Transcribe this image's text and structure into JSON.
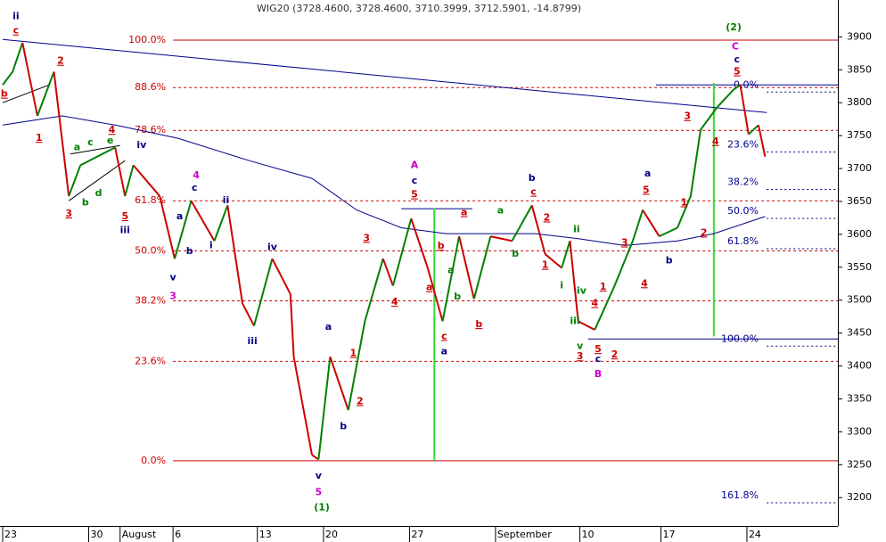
{
  "chart_data": {
    "type": "line",
    "title": "WIG20 (3728.4600, 3728.4600, 3710.3999, 3712.5901, -14.8799)",
    "xlim": [
      0,
      50.5
    ],
    "ylim": [
      3157,
      3956
    ],
    "xticks": [
      {
        "value": 0,
        "label": "23"
      },
      {
        "value": 5.2,
        "label": "30"
      },
      {
        "value": 7.1,
        "label": "August"
      },
      {
        "value": 10.3,
        "label": "6"
      },
      {
        "value": 15.4,
        "label": "13"
      },
      {
        "value": 19.4,
        "label": "20"
      },
      {
        "value": 24.6,
        "label": "27"
      },
      {
        "value": 29.8,
        "label": "September"
      },
      {
        "value": 34.9,
        "label": "10"
      },
      {
        "value": 39.8,
        "label": "17"
      },
      {
        "value": 45,
        "label": "24"
      }
    ],
    "yticks": [
      3200,
      3250,
      3300,
      3350,
      3400,
      3450,
      3500,
      3550,
      3600,
      3650,
      3700,
      3750,
      3800,
      3850,
      3900
    ],
    "up_color": "#008000",
    "down_color": "#cc0000",
    "x": [
      0,
      0.6,
      1.2,
      2.1,
      3.1,
      4.0,
      4.7,
      6.8,
      7.4,
      7.9,
      9.5,
      10.4,
      11.4,
      12.8,
      13.6,
      14.5,
      15.2,
      16.3,
      17.4,
      17.6,
      18.7,
      19.1,
      19.8,
      20.9,
      21.9,
      23.0,
      23.6,
      24.7,
      25.7,
      26.6,
      27.6,
      28.5,
      29.5,
      30.8,
      32.0,
      32.8,
      33.8,
      34.3,
      34.8,
      35.8,
      37.0,
      38.1,
      38.7,
      39.7,
      40.8,
      41.6,
      42.2,
      43.2,
      44.2,
      44.6,
      45.1,
      45.7,
      46.1
    ],
    "values": [
      3827,
      3847,
      3891,
      3780,
      3847,
      3658,
      3705,
      3732,
      3658,
      3705,
      3658,
      3563,
      3651,
      3590,
      3644,
      3495,
      3461,
      3563,
      3509,
      3414,
      3265,
      3258,
      3414,
      3333,
      3468,
      3563,
      3522,
      3624,
      3549,
      3468,
      3597,
      3502,
      3597,
      3590,
      3644,
      3570,
      3549,
      3590,
      3468,
      3455,
      3522,
      3590,
      3637,
      3597,
      3610,
      3658,
      3759,
      3793,
      3820,
      3827,
      3752,
      3766,
      3718
    ],
    "moving_average": {
      "color": "#00008b",
      "x": [
        0,
        3.6,
        6.8,
        10.6,
        14.9,
        18.7,
        21.4,
        24.1,
        26.8,
        29.5,
        32.2,
        34.9,
        37.6,
        40.8,
        43.0,
        46.1
      ],
      "values": [
        3766,
        3780,
        3766,
        3746,
        3712,
        3685,
        3637,
        3610,
        3601,
        3601,
        3601,
        3593,
        3583,
        3590,
        3601,
        3627
      ]
    },
    "trendlines": [
      {
        "color": "#00008b",
        "x": [
          0,
          46.2
        ],
        "values": [
          3896,
          3785
        ]
      },
      {
        "color": "#000000",
        "x": [
          0,
          2.8
        ],
        "values": [
          3800,
          3827
        ]
      },
      {
        "color": "#000000",
        "x": [
          4.0,
          7.4
        ],
        "values": [
          3651,
          3712
        ]
      },
      {
        "color": "#000000",
        "x": [
          4.1,
          7.1
        ],
        "values": [
          3722,
          3735
        ]
      }
    ],
    "vertical_lines": [
      {
        "color": "#33dd33",
        "x": 26.1,
        "values": [
          3640,
          3256
        ]
      },
      {
        "color": "#33dd33",
        "x": 43.0,
        "values": [
          3830,
          3445
        ]
      }
    ],
    "horizontal_lines": [
      {
        "color": "#00008b",
        "x": [
          24.1,
          28.4
        ],
        "value": 3639
      },
      {
        "color": "#00008b",
        "x": [
          39.5,
          50.5
        ],
        "value": 3827
      },
      {
        "color": "#00008b",
        "x": [
          35.4,
          50.5
        ],
        "value": 3441
      }
    ],
    "fib_levels": {
      "color": "#cc0000",
      "x_start": 10.3,
      "levels": [
        {
          "label": "100.0%",
          "value": 3895,
          "dashed": false
        },
        {
          "label": "88.6%",
          "value": 3823,
          "dashed": true
        },
        {
          "label": "78.6%",
          "value": 3758,
          "dashed": true
        },
        {
          "label": "61.8%",
          "value": 3651,
          "dashed": true
        },
        {
          "label": "50.0%",
          "value": 3575,
          "dashed": true
        },
        {
          "label": "38.2%",
          "value": 3499,
          "dashed": true
        },
        {
          "label": "23.6%",
          "value": 3407,
          "dashed": true
        },
        {
          "label": "0.0%",
          "value": 3256,
          "dashed": false
        }
      ]
    },
    "fib_levels_right": {
      "color": "#00008b",
      "x_label": 45.7,
      "x_start": 46.2,
      "levels": [
        {
          "label": "0.0%",
          "value": 3827
        },
        {
          "label": "23.6%",
          "value": 3736
        },
        {
          "label": "38.2%",
          "value": 3679
        },
        {
          "label": "50.0%",
          "value": 3635
        },
        {
          "label": "61.8%",
          "value": 3589
        },
        {
          "label": "100.0%",
          "value": 3441
        },
        {
          "label": "161.8%",
          "value": 3203
        }
      ]
    },
    "annotations": [
      {
        "text": "ii",
        "x": 0.8,
        "y": 3931,
        "color": "#000080"
      },
      {
        "text": "c",
        "x": 0.8,
        "y": 3909,
        "color": "#cc0000"
      },
      {
        "text": "b",
        "x": 0.1,
        "y": 3813,
        "color": "#cc0000"
      },
      {
        "text": "1",
        "x": 2.2,
        "y": 3746,
        "color": "#cc0000"
      },
      {
        "text": "2",
        "x": 3.5,
        "y": 3863,
        "color": "#cc0000"
      },
      {
        "text": "3",
        "x": 4.0,
        "y": 3631,
        "color": "#cc0000"
      },
      {
        "text": "a",
        "x": 4.5,
        "y": 3732,
        "color": "#008000"
      },
      {
        "text": "b",
        "x": 5.0,
        "y": 3648,
        "color": "#008000"
      },
      {
        "text": "c",
        "x": 5.3,
        "y": 3739,
        "color": "#008000"
      },
      {
        "text": "d",
        "x": 5.8,
        "y": 3662,
        "color": "#008000"
      },
      {
        "text": "e",
        "x": 6.5,
        "y": 3742,
        "color": "#008000"
      },
      {
        "text": "4",
        "x": 6.6,
        "y": 3758,
        "color": "#cc0000"
      },
      {
        "text": "iv",
        "x": 8.4,
        "y": 3735,
        "color": "#000080"
      },
      {
        "text": "5",
        "x": 7.4,
        "y": 3627,
        "color": "#cc0000"
      },
      {
        "text": "iii",
        "x": 7.4,
        "y": 3606,
        "color": "#000080"
      },
      {
        "text": "4",
        "x": 11.7,
        "y": 3689,
        "color": "#cc00cc"
      },
      {
        "text": "c",
        "x": 11.6,
        "y": 3670,
        "color": "#000080"
      },
      {
        "text": "a",
        "x": 10.7,
        "y": 3627,
        "color": "#000080"
      },
      {
        "text": "b",
        "x": 11.3,
        "y": 3574,
        "color": "#000080"
      },
      {
        "text": "i",
        "x": 12.6,
        "y": 3583,
        "color": "#000080"
      },
      {
        "text": "ii",
        "x": 13.5,
        "y": 3651,
        "color": "#000080"
      },
      {
        "text": "v",
        "x": 10.3,
        "y": 3534,
        "color": "#000080"
      },
      {
        "text": "3",
        "x": 10.3,
        "y": 3506,
        "color": "#cc00cc"
      },
      {
        "text": "iv",
        "x": 16.3,
        "y": 3580,
        "color": "#000080"
      },
      {
        "text": "iii",
        "x": 15.1,
        "y": 3437,
        "color": "#000080"
      },
      {
        "text": "a",
        "x": 19.7,
        "y": 3459,
        "color": "#000080"
      },
      {
        "text": "b",
        "x": 20.6,
        "y": 3308,
        "color": "#000080"
      },
      {
        "text": "1",
        "x": 21.2,
        "y": 3419,
        "color": "#cc0000"
      },
      {
        "text": "2",
        "x": 21.6,
        "y": 3346,
        "color": "#cc0000"
      },
      {
        "text": "3",
        "x": 22.0,
        "y": 3594,
        "color": "#cc0000"
      },
      {
        "text": "4",
        "x": 23.7,
        "y": 3497,
        "color": "#cc0000"
      },
      {
        "text": "v",
        "x": 19.1,
        "y": 3233,
        "color": "#000080"
      },
      {
        "text": "5",
        "x": 19.1,
        "y": 3208,
        "color": "#cc00cc"
      },
      {
        "text": "(1)",
        "x": 19.3,
        "y": 3185,
        "color": "#008000"
      },
      {
        "text": "A",
        "x": 24.9,
        "y": 3705,
        "color": "#cc00cc"
      },
      {
        "text": "c",
        "x": 24.9,
        "y": 3681,
        "color": "#000080"
      },
      {
        "text": "5",
        "x": 24.9,
        "y": 3660,
        "color": "#cc0000"
      },
      {
        "text": "b",
        "x": 26.5,
        "y": 3582,
        "color": "#cc0000"
      },
      {
        "text": "a",
        "x": 25.8,
        "y": 3519,
        "color": "#cc0000"
      },
      {
        "text": "a",
        "x": 27.1,
        "y": 3545,
        "color": "#008000"
      },
      {
        "text": "b",
        "x": 27.5,
        "y": 3505,
        "color": "#008000"
      },
      {
        "text": "a",
        "x": 27.9,
        "y": 3633,
        "color": "#cc0000"
      },
      {
        "text": "b",
        "x": 28.8,
        "y": 3463,
        "color": "#cc0000"
      },
      {
        "text": "c",
        "x": 26.7,
        "y": 3445,
        "color": "#cc0000"
      },
      {
        "text": "a",
        "x": 26.7,
        "y": 3422,
        "color": "#000080"
      },
      {
        "text": "a",
        "x": 30.1,
        "y": 3636,
        "color": "#008000"
      },
      {
        "text": "b",
        "x": 31.0,
        "y": 3570,
        "color": "#008000"
      },
      {
        "text": "b",
        "x": 32.0,
        "y": 3685,
        "color": "#000080"
      },
      {
        "text": "c",
        "x": 32.1,
        "y": 3664,
        "color": "#cc0000"
      },
      {
        "text": "2",
        "x": 32.9,
        "y": 3625,
        "color": "#cc0000"
      },
      {
        "text": "1",
        "x": 32.8,
        "y": 3553,
        "color": "#cc0000"
      },
      {
        "text": "i",
        "x": 33.8,
        "y": 3522,
        "color": "#008000"
      },
      {
        "text": "ii",
        "x": 34.7,
        "y": 3607,
        "color": "#008000"
      },
      {
        "text": "iv",
        "x": 35.0,
        "y": 3514,
        "color": "#008000"
      },
      {
        "text": "iii",
        "x": 34.6,
        "y": 3468,
        "color": "#008000"
      },
      {
        "text": "v",
        "x": 34.9,
        "y": 3430,
        "color": "#008000"
      },
      {
        "text": "3",
        "x": 34.9,
        "y": 3414,
        "color": "#cc0000"
      },
      {
        "text": "5",
        "x": 36.0,
        "y": 3425,
        "color": "#cc0000"
      },
      {
        "text": "c",
        "x": 36.0,
        "y": 3410,
        "color": "#000080"
      },
      {
        "text": "B",
        "x": 36.0,
        "y": 3387,
        "color": "#cc00cc"
      },
      {
        "text": "4",
        "x": 35.8,
        "y": 3495,
        "color": "#cc0000"
      },
      {
        "text": "1",
        "x": 36.3,
        "y": 3520,
        "color": "#cc0000"
      },
      {
        "text": "2",
        "x": 37.0,
        "y": 3417,
        "color": "#cc0000"
      },
      {
        "text": "3",
        "x": 37.6,
        "y": 3587,
        "color": "#cc0000"
      },
      {
        "text": "4",
        "x": 38.8,
        "y": 3525,
        "color": "#cc0000"
      },
      {
        "text": "5",
        "x": 38.9,
        "y": 3667,
        "color": "#cc0000"
      },
      {
        "text": "a",
        "x": 39.0,
        "y": 3692,
        "color": "#000080"
      },
      {
        "text": "b",
        "x": 40.3,
        "y": 3560,
        "color": "#000080"
      },
      {
        "text": "1",
        "x": 41.2,
        "y": 3648,
        "color": "#cc0000"
      },
      {
        "text": "2",
        "x": 42.4,
        "y": 3602,
        "color": "#cc0000"
      },
      {
        "text": "3",
        "x": 41.4,
        "y": 3779,
        "color": "#cc0000"
      },
      {
        "text": "4",
        "x": 43.1,
        "y": 3741,
        "color": "#cc0000"
      },
      {
        "text": "(2)",
        "x": 44.2,
        "y": 3914,
        "color": "#008000"
      },
      {
        "text": "C",
        "x": 44.3,
        "y": 3885,
        "color": "#cc00cc"
      },
      {
        "text": "c",
        "x": 44.4,
        "y": 3865,
        "color": "#000080"
      },
      {
        "text": "5",
        "x": 44.4,
        "y": 3847,
        "color": "#cc0000"
      }
    ]
  }
}
